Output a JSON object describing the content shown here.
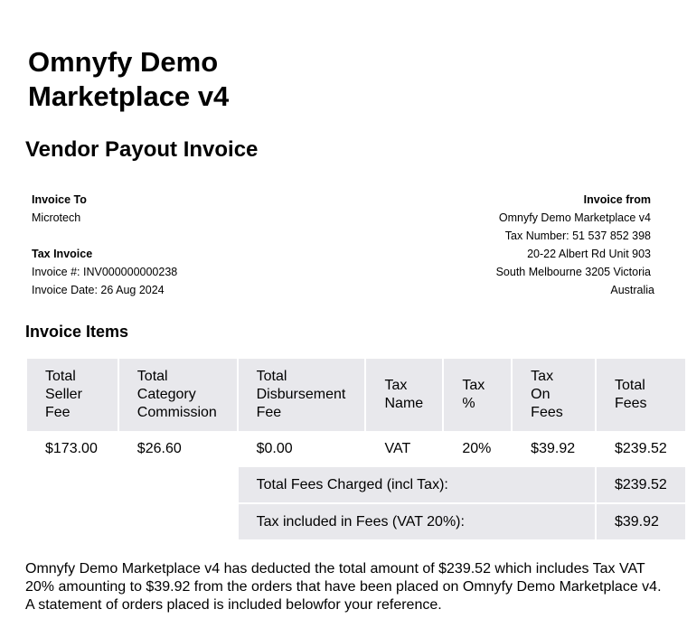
{
  "header": {
    "title_line1": "Omnyfy Demo",
    "title_line2": "Marketplace v4",
    "subtitle": "Vendor Payout Invoice"
  },
  "invoice_to": {
    "heading": "Invoice To",
    "name": "Microtech",
    "tax_heading": "Tax Invoice",
    "invoice_number": "Invoice #: INV000000000238",
    "invoice_date": "Invoice Date: 26 Aug 2024"
  },
  "invoice_from": {
    "heading": "Invoice from",
    "lines": [
      "Omnyfy Demo Marketplace v4",
      "Tax Number: 51 537 852 398",
      "20-22 Albert Rd Unit 903",
      "South Melbourne 3205 Victoria",
      "Australia"
    ]
  },
  "items": {
    "heading": "Invoice Items",
    "columns": [
      [
        "Total",
        "Seller",
        "Fee"
      ],
      [
        "Total",
        "Category",
        "Commission"
      ],
      [
        "Total",
        "Disbursement",
        "Fee"
      ],
      [
        "Tax",
        "Name"
      ],
      [
        "Tax",
        "%"
      ],
      [
        "Tax",
        "On",
        "Fees"
      ],
      [
        "Total",
        "Fees"
      ]
    ],
    "row": [
      "$173.00",
      "$26.60",
      "$0.00",
      "VAT",
      "20%",
      "$39.92",
      "$239.52"
    ],
    "summary": [
      {
        "label": "Total Fees Charged (incl Tax):",
        "value": "$239.52"
      },
      {
        "label": "Tax included in Fees (VAT 20%):",
        "value": "$39.92"
      }
    ]
  },
  "footer": {
    "text": "Omnyfy Demo Marketplace v4 has deducted the total amount of $239.52 which includes Tax VAT 20% amounting to $39.92 from the orders that have been placed on Omnyfy Demo Marketplace v4. A statement of orders placed is included belowfor your reference."
  }
}
